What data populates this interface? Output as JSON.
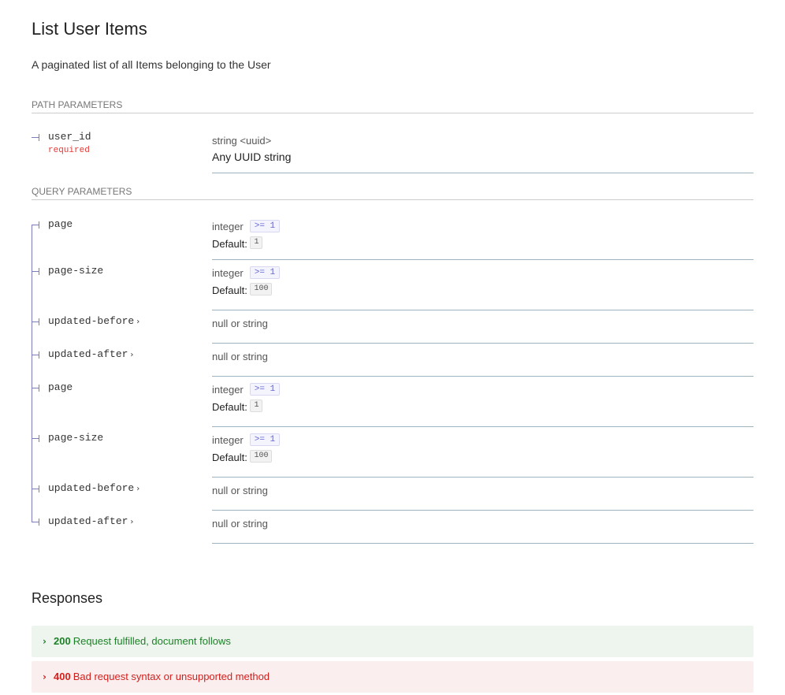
{
  "title": "List User Items",
  "description": "A paginated list of all Items belonging to the User",
  "path_section": "PATH PARAMETERS",
  "query_section": "QUERY PARAMETERS",
  "path_params": [
    {
      "name": "user_id",
      "required": "required",
      "type": "string <uuid>",
      "description": "Any UUID string"
    }
  ],
  "query_params": [
    {
      "name": "page",
      "type": "integer",
      "constraint": ">= 1",
      "default_label": "Default:",
      "default": "1"
    },
    {
      "name": "page-size",
      "type": "integer",
      "constraint": ">= 1",
      "default_label": "Default:",
      "default": "100"
    },
    {
      "name": "updated-before",
      "type": "null or string",
      "expandable": true
    },
    {
      "name": "updated-after",
      "type": "null or string",
      "expandable": true
    },
    {
      "name": "page",
      "type": "integer",
      "constraint": ">= 1",
      "default_label": "Default:",
      "default": "1"
    },
    {
      "name": "page-size",
      "type": "integer",
      "constraint": ">= 1",
      "default_label": "Default:",
      "default": "100"
    },
    {
      "name": "updated-before",
      "type": "null or string",
      "expandable": true
    },
    {
      "name": "updated-after",
      "type": "null or string",
      "expandable": true
    }
  ],
  "responses_title": "Responses",
  "responses": [
    {
      "code": "200",
      "text": "Request fulfilled, document follows",
      "color": "#1d8127",
      "bg": "#edf5ee"
    },
    {
      "code": "400",
      "text": "Bad request syntax or unsupported method",
      "color": "#d41f1c",
      "bg": "#fbeeee"
    }
  ]
}
